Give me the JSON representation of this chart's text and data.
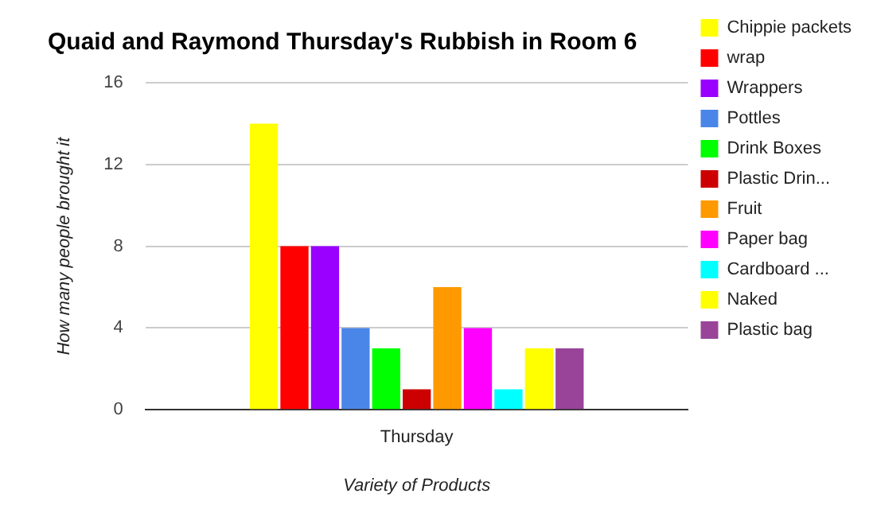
{
  "chart_data": {
    "type": "bar",
    "title": "Quaid and Raymond Thursday's Rubbish in Room 6",
    "xlabel": "Variety of Products",
    "ylabel": "How many people brought it",
    "categories": [
      "Thursday"
    ],
    "series": [
      {
        "name": "Chippie packets",
        "color": "#ffff00",
        "values": [
          14
        ]
      },
      {
        "name": "wrap",
        "color": "#ff0000",
        "values": [
          8
        ]
      },
      {
        "name": "Wrappers",
        "color": "#9900ff",
        "values": [
          8
        ]
      },
      {
        "name": "Pottles",
        "color": "#4a86e8",
        "values": [
          4
        ]
      },
      {
        "name": "Drink Boxes",
        "color": "#00ff00",
        "values": [
          3
        ]
      },
      {
        "name": "Plastic Drin...",
        "color": "#cc0000",
        "values": [
          1
        ]
      },
      {
        "name": "Fruit",
        "color": "#ff9900",
        "values": [
          6
        ]
      },
      {
        "name": "Paper bag",
        "color": "#ff00ff",
        "values": [
          4
        ]
      },
      {
        "name": "Cardboard ...",
        "color": "#00ffff",
        "values": [
          1
        ]
      },
      {
        "name": "Naked",
        "color": "#ffff00",
        "values": [
          3
        ]
      },
      {
        "name": "Plastic bag",
        "color": "#994499",
        "values": [
          3
        ]
      }
    ],
    "ylim": [
      0,
      16
    ],
    "yticks": [
      0,
      4,
      8,
      12,
      16
    ],
    "grid": "y",
    "legend": "right"
  }
}
